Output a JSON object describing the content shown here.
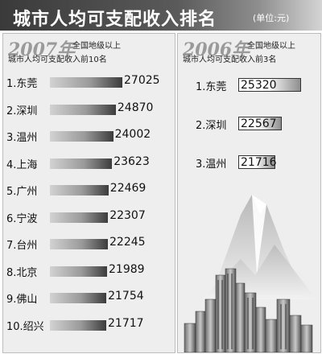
{
  "header": {
    "title": "城市人均可支配收入排名",
    "unit": "(单位:元)"
  },
  "left_panel": {
    "year": "2007年",
    "subtitle_line1": "全国地级以上",
    "subtitle_line2": "城市人均可支配收入前10名"
  },
  "right_panel": {
    "year": "2006年",
    "subtitle_line1": "全国地级以上",
    "subtitle_line2": "城市人均可支配收入前3名"
  },
  "chart_data": [
    {
      "type": "bar",
      "title": "2007年",
      "categories": [
        "1.东莞",
        "2.深圳",
        "3.温州",
        "4.上海",
        "5.广州",
        "6.宁波",
        "7.台州",
        "8.北京",
        "9.佛山",
        "10.绍兴"
      ],
      "values": [
        27025,
        24870,
        24002,
        23623,
        22469,
        22307,
        22245,
        21989,
        21754,
        21717
      ]
    },
    {
      "type": "bar",
      "title": "2006年",
      "categories": [
        "1.东莞",
        "2.深圳",
        "3.温州"
      ],
      "values": [
        25320,
        22567,
        21716
      ]
    }
  ],
  "colors": {
    "header_dark": "#3a3a3a",
    "panel_bg": "#eeeeee",
    "bar_dark": "#3c3c3c",
    "year_text": "#9a9a9a"
  }
}
